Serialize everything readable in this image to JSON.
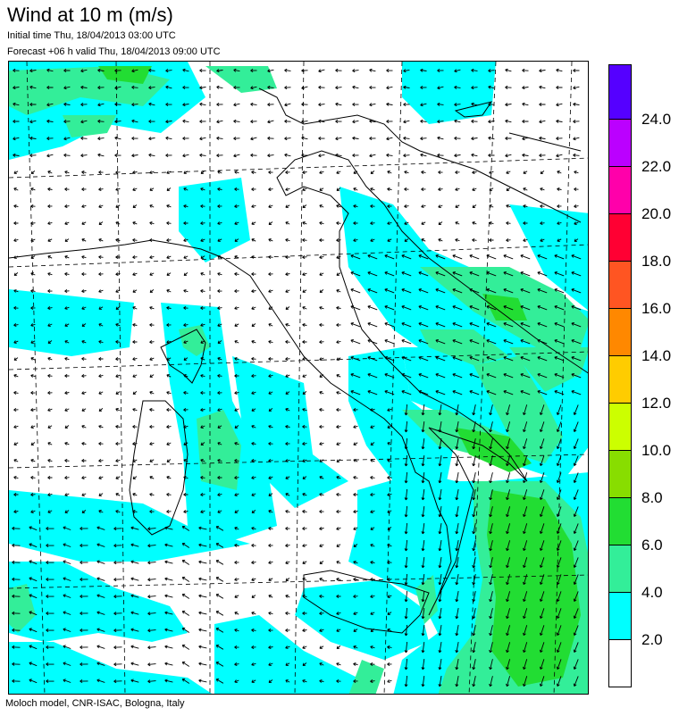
{
  "header": {
    "title": "Wind at 10 m (m/s)",
    "initial_time": "Initial time  Thu, 18/04/2013 03:00 UTC",
    "forecast": "Forecast +06 h valid  Thu, 18/04/2013 09:00 UTC"
  },
  "footer": "Moloch model, CNR-ISAC, Bologna, Italy",
  "legend": {
    "colors": [
      "#ffffff",
      "#00ffff",
      "#33ee99",
      "#22dd33",
      "#88dd00",
      "#ccff00",
      "#ffcc00",
      "#ff8800",
      "#ff5522",
      "#ff0033",
      "#ff00aa",
      "#bb00ff",
      "#5500ff"
    ],
    "labels": [
      "2.0",
      "4.0",
      "6.0",
      "8.0",
      "10.0",
      "12.0",
      "14.0",
      "16.0",
      "18.0",
      "20.0",
      "22.0",
      "24.0"
    ]
  }
}
